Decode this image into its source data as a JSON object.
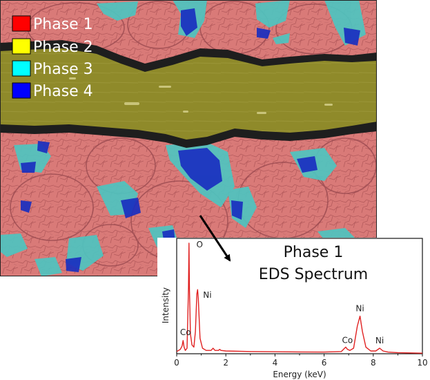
{
  "legend": {
    "items": [
      {
        "label": "Phase 1",
        "color": "#ff0000"
      },
      {
        "label": "Phase 2",
        "color": "#ffff00"
      },
      {
        "label": "Phase 3",
        "color": "#00ffff"
      },
      {
        "label": "Phase 4",
        "color": "#0000ff"
      }
    ]
  },
  "colors": {
    "phase1_overlay": "#d97a78",
    "phase2_overlay": "#8f8a2a",
    "phase3_overlay": "#4fc4c0",
    "phase4_overlay": "#1a2fc0",
    "spectrum_line": "#e02020"
  },
  "chart_data": {
    "type": "line",
    "title_line1": "Phase 1",
    "title_line2": "EDS Spectrum",
    "xlabel": "Energy (keV)",
    "ylabel": "Intensity",
    "xlim": [
      0,
      10
    ],
    "ylim": [
      0,
      100
    ],
    "xticks": [
      0,
      2,
      4,
      6,
      8,
      10
    ],
    "x": [
      0.0,
      0.15,
      0.22,
      0.26,
      0.3,
      0.35,
      0.42,
      0.48,
      0.5,
      0.52,
      0.56,
      0.62,
      0.7,
      0.76,
      0.82,
      0.85,
      0.88,
      0.95,
      1.05,
      1.2,
      1.4,
      1.48,
      1.56,
      1.7,
      1.75,
      1.8,
      2.0,
      3.0,
      4.0,
      5.0,
      6.0,
      6.7,
      6.88,
      6.95,
      7.05,
      7.2,
      7.35,
      7.46,
      7.56,
      7.7,
      7.9,
      8.1,
      8.26,
      8.4,
      8.6,
      9.0,
      10.0
    ],
    "y": [
      2,
      4,
      7,
      12,
      6,
      3,
      5,
      60,
      100,
      58,
      18,
      8,
      6,
      20,
      54,
      58,
      50,
      14,
      5,
      3,
      3,
      5,
      3,
      3,
      4,
      3,
      2.5,
      2,
      1.8,
      1.6,
      1.5,
      2,
      6,
      4,
      3,
      5,
      25,
      34,
      20,
      6,
      2.5,
      2.5,
      5,
      2.5,
      1.5,
      1,
      0.5
    ],
    "peaks": [
      {
        "label": "O",
        "x": 0.52,
        "y": 100
      },
      {
        "label": "Ni",
        "x": 0.85,
        "y": 58
      },
      {
        "label": "Co",
        "x": 0.3,
        "y": 12
      },
      {
        "label": "Ni",
        "x": 7.46,
        "y": 34
      },
      {
        "label": "Co",
        "x": 6.95,
        "y": 6
      },
      {
        "label": "Ni",
        "x": 8.26,
        "y": 5
      }
    ]
  }
}
